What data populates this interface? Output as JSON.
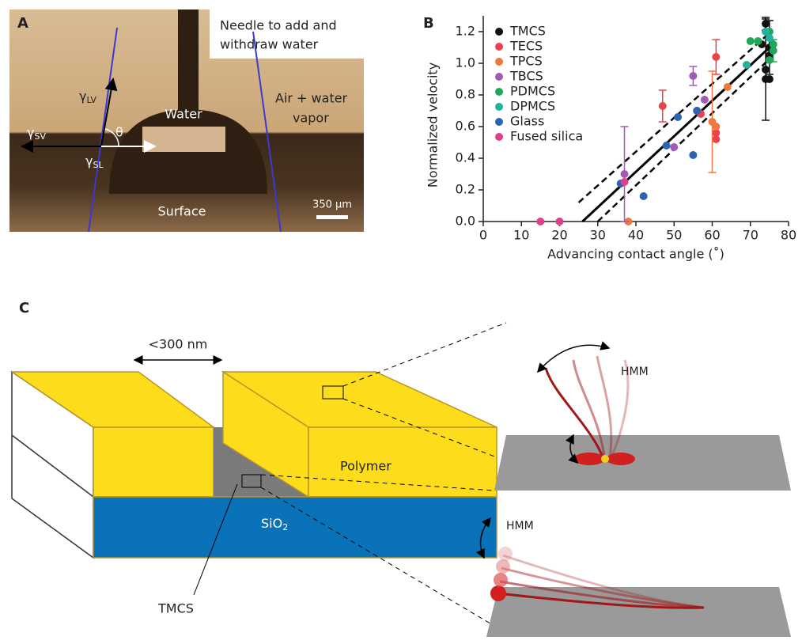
{
  "panel_a": {
    "label": "A",
    "needle": [
      "Needle to add and",
      "withdraw water"
    ],
    "air": [
      "Air + water",
      "vapor"
    ],
    "water": "Water",
    "surface": "Surface",
    "scale_bar": "350 μm",
    "theta": "θ",
    "gamma_lv": {
      "symbol": "γ",
      "subscript": "LV"
    },
    "gamma_sv": {
      "symbol": "γ",
      "subscript": "SV"
    },
    "gamma_sl": {
      "symbol": "γ",
      "subscript": "SL"
    }
  },
  "chart_data": {
    "type": "scatter",
    "panel_label": "B",
    "xlabel": "Advancing contact angle (˚)",
    "ylabel": "Normalized velocity",
    "xlim": [
      0,
      80
    ],
    "xticks": [
      0,
      10,
      20,
      30,
      40,
      50,
      60,
      70,
      80
    ],
    "ylim": [
      0,
      1.3
    ],
    "yticks": [
      {
        "value": 0,
        "label": "0.0"
      },
      0.2,
      0.4,
      0.6,
      0.8,
      {
        "value": 1,
        "label": "1.0"
      },
      1.2
    ],
    "legend": "upper left",
    "series": [
      {
        "name": "TMCS",
        "color": "#111111",
        "x": [
          73,
          74,
          75,
          74,
          75,
          74,
          75
        ],
        "values": [
          1.12,
          1.25,
          1.05,
          0.9,
          0.9,
          0.96,
          1.1
        ],
        "errors": [
          null,
          0.04,
          null,
          null,
          null,
          0.32,
          0.17
        ]
      },
      {
        "name": "TECS",
        "color": "#e8434a",
        "x": [
          47,
          57,
          61,
          61,
          61
        ],
        "values": [
          0.73,
          0.68,
          1.04,
          0.52,
          0.56
        ],
        "errors": [
          0.1,
          null,
          0.11,
          null,
          null
        ]
      },
      {
        "name": "TPCS",
        "color": "#f07840",
        "x": [
          60,
          61,
          64,
          38,
          56
        ],
        "values": [
          0.63,
          0.6,
          0.85,
          0,
          0.7
        ],
        "errors": [
          0.32,
          null,
          null,
          null,
          null
        ]
      },
      {
        "name": "TBCS",
        "color": "#a05bb5",
        "x": [
          37,
          55,
          50,
          58
        ],
        "values": [
          0.3,
          0.92,
          0.47,
          0.77
        ],
        "errors": [
          0.3,
          0.06,
          null,
          null
        ]
      },
      {
        "name": "PDMCS",
        "color": "#1fa85a",
        "x": [
          70,
          72,
          75,
          76,
          75,
          76
        ],
        "values": [
          1.14,
          1.14,
          1.2,
          1.08,
          1.02,
          1.12
        ],
        "errors": [
          null,
          null,
          null,
          0.07,
          null,
          null
        ]
      },
      {
        "name": "DPMCS",
        "color": "#21b39a",
        "x": [
          69,
          74,
          75
        ],
        "values": [
          0.99,
          1.2,
          1.16
        ],
        "errors": [
          null,
          null,
          null
        ]
      },
      {
        "name": "Glass",
        "color": "#2d64b0",
        "x": [
          36,
          42,
          48,
          51,
          55,
          56
        ],
        "values": [
          0.24,
          0.16,
          0.48,
          0.66,
          0.42,
          0.7
        ],
        "errors": [
          null,
          null,
          null,
          null,
          null,
          null
        ]
      },
      {
        "name": "Fused silica",
        "color": "#e0408a",
        "x": [
          15,
          20,
          37
        ],
        "values": [
          0,
          0,
          0.25
        ],
        "errors": [
          null,
          null,
          null
        ]
      }
    ],
    "fit_lines": [
      {
        "style": "solid",
        "x": [
          26,
          75
        ],
        "values": [
          0,
          1.1
        ]
      },
      {
        "style": "dashed",
        "x": [
          25,
          74
        ],
        "values": [
          0.12,
          1.17
        ]
      },
      {
        "style": "dashed",
        "x": [
          30,
          76
        ],
        "values": [
          0,
          1.05
        ]
      }
    ]
  },
  "panel_c": {
    "label": "C",
    "gap": "<300 nm",
    "polymer": "Polymer",
    "sio2": {
      "text": "SiO",
      "subscript": "2"
    },
    "tmcs": "TMCS",
    "hmm_top": "HMM",
    "hmm_bottom": "HMM"
  }
}
